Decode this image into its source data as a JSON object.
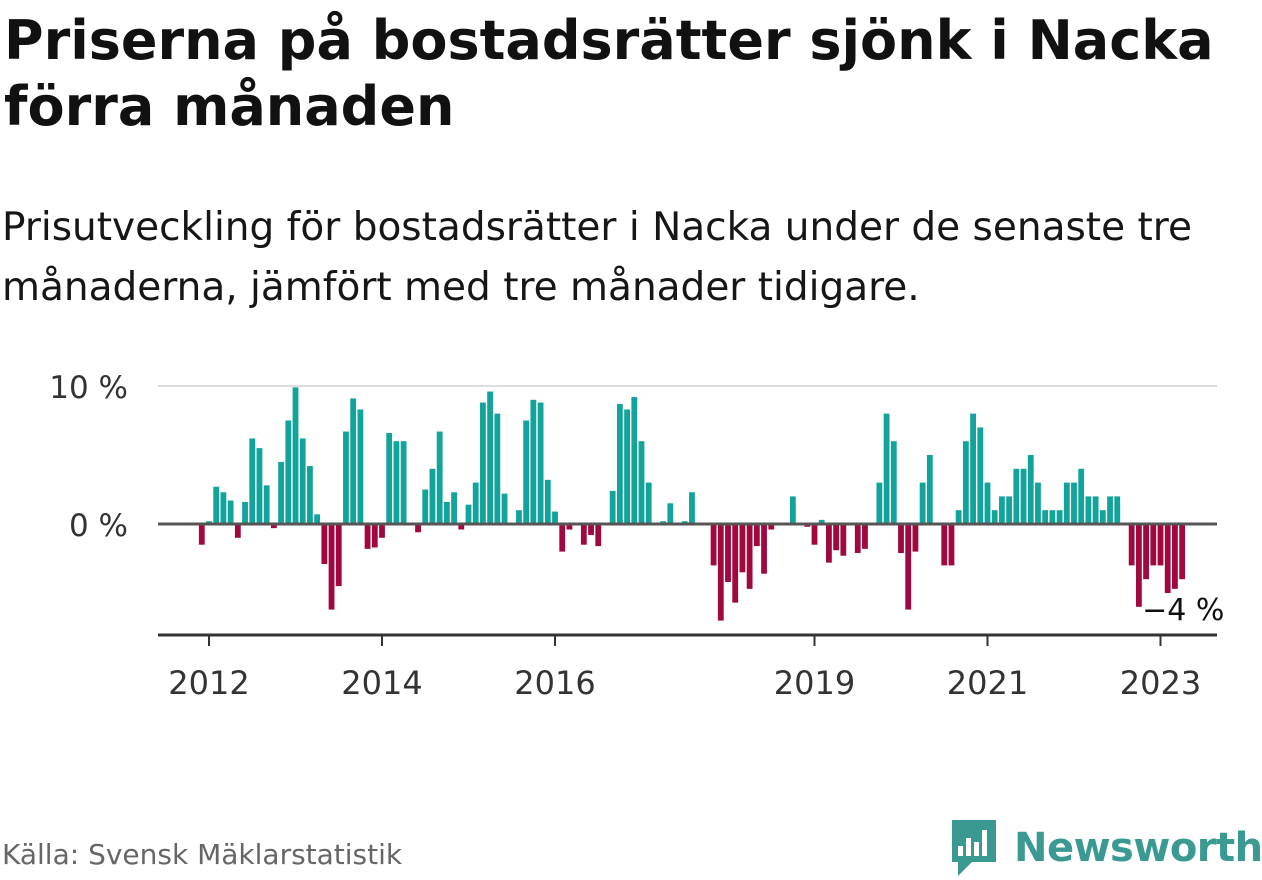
{
  "title": "Priserna på bostadsrätter sjönk i Nacka förra månaden",
  "subtitle": "Prisutveckling för bostadsrätter i Nacka under de senaste tre månaderna, jämfört med tre månader tidigare.",
  "source": "Källa: Svensk Mäklarstatistik",
  "brand": {
    "name": "Newsworthy",
    "logo_icon": "bar-chart-badge-icon",
    "color": "#3a9a92"
  },
  "colors": {
    "positive": "#12a39a",
    "negative": "#a0083f",
    "zero_line": "#555555",
    "grid": "#dddddd",
    "axis": "#333333"
  },
  "chart_data": {
    "type": "bar",
    "title": "Priserna på bostadsrätter sjönk i Nacka förra månaden",
    "ylabel": "",
    "xlabel": "",
    "ylim": [
      -8,
      10
    ],
    "unit": "%",
    "yticks": [
      {
        "value": 10,
        "label": "10 %"
      },
      {
        "value": 0,
        "label": "0 %"
      }
    ],
    "xticks": [
      {
        "month": "2012-01",
        "label": "2012"
      },
      {
        "month": "2014-01",
        "label": "2014"
      },
      {
        "month": "2016-01",
        "label": "2016"
      },
      {
        "month": "2019-01",
        "label": "2019"
      },
      {
        "month": "2021-01",
        "label": "2021"
      },
      {
        "month": "2023-01",
        "label": "2023"
      }
    ],
    "start_month": "2011-12",
    "values": [
      -1.5,
      0.2,
      2.7,
      2.3,
      1.7,
      -1.0,
      1.6,
      6.2,
      5.5,
      2.8,
      -0.3,
      4.5,
      7.5,
      9.9,
      6.2,
      4.2,
      0.7,
      -2.9,
      -6.2,
      -4.5,
      6.7,
      9.1,
      8.3,
      -1.8,
      -1.7,
      -1.0,
      6.6,
      6.0,
      6.0,
      0.0,
      -0.6,
      2.5,
      4.0,
      6.7,
      1.6,
      2.3,
      -0.4,
      1.4,
      3.0,
      8.8,
      9.6,
      8.0,
      2.2,
      0.0,
      1.0,
      7.5,
      9.0,
      8.8,
      3.2,
      0.9,
      -2.0,
      -0.4,
      0.0,
      -1.5,
      -0.8,
      -1.6,
      0.0,
      2.4,
      8.7,
      8.3,
      9.2,
      6.0,
      3.0,
      0.0,
      0.2,
      1.5,
      0.0,
      0.2,
      2.3,
      0.0,
      0.0,
      -3.0,
      -7.0,
      -4.2,
      -5.7,
      -3.5,
      -4.7,
      -1.6,
      -3.6,
      -0.4,
      0.0,
      0.0,
      2.0,
      0.0,
      -0.2,
      -1.5,
      0.3,
      -2.8,
      -1.9,
      -2.3,
      0.0,
      -2.1,
      -1.8,
      0.0,
      3.0,
      8.0,
      6.0,
      -2.1,
      -6.2,
      -2.0,
      3.0,
      5.0,
      0.0,
      -3.0,
      -3.0,
      1.0,
      6.0,
      8.0,
      7.0,
      3.0,
      1.0,
      2.0,
      2.0,
      4.0,
      4.0,
      5.0,
      3.0,
      1.0,
      1.0,
      1.0,
      3.0,
      3.0,
      4.0,
      2.0,
      2.0,
      1.0,
      2.0,
      2.0,
      0.0,
      -3.0,
      -6.0,
      -4.0,
      -3.0,
      -3.0,
      -5.0,
      -4.7,
      -4.0
    ],
    "last_value_label": "−4 %"
  }
}
